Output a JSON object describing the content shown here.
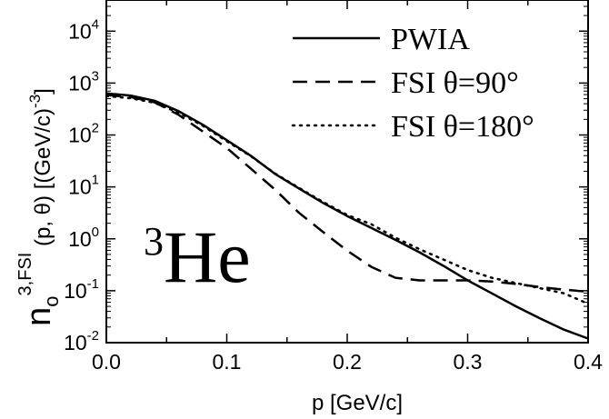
{
  "chart_data": {
    "type": "line",
    "xlabel": "p [GeV/c]",
    "ylabel": {
      "base": "n",
      "base_sub": "o",
      "superscript": "3,FSI",
      "rest": " (p, θ) [(GeV/c)",
      "exponent": "-3",
      "close": "]"
    },
    "xlim": [
      0.0,
      0.4
    ],
    "ylim_log10": [
      -2,
      4.6
    ],
    "y_scale": "log",
    "x_ticks": [
      {
        "value": 0.0,
        "label": "0.0"
      },
      {
        "value": 0.1,
        "label": "0.1"
      },
      {
        "value": 0.2,
        "label": "0.2"
      },
      {
        "value": 0.3,
        "label": "0.3"
      },
      {
        "value": 0.4,
        "label": "0.4"
      }
    ],
    "y_ticks": [
      {
        "exp": -2,
        "base": "10",
        "sup": "-2"
      },
      {
        "exp": -1,
        "base": "10",
        "sup": "-1"
      },
      {
        "exp": 0,
        "base": "10",
        "sup": "0"
      },
      {
        "exp": 1,
        "base": "10",
        "sup": "1"
      },
      {
        "exp": 2,
        "base": "10",
        "sup": "2"
      },
      {
        "exp": 3,
        "base": "10",
        "sup": "3"
      },
      {
        "exp": 4,
        "base": "10",
        "sup": "4"
      }
    ],
    "annotation": {
      "sup": "3",
      "text": "He"
    },
    "legend_position": "top-right",
    "grid": false,
    "series": [
      {
        "name": "PWIA",
        "style": "solid",
        "x": [
          0.0,
          0.02,
          0.04,
          0.06,
          0.08,
          0.1,
          0.12,
          0.14,
          0.16,
          0.18,
          0.2,
          0.22,
          0.24,
          0.26,
          0.28,
          0.3,
          0.32,
          0.34,
          0.36,
          0.38,
          0.4
        ],
        "y": [
          631,
          575,
          457,
          288,
          158,
          79.4,
          39.8,
          17.8,
          9.3,
          4.9,
          2.75,
          1.62,
          0.955,
          0.55,
          0.3,
          0.158,
          0.0891,
          0.0501,
          0.0295,
          0.0178,
          0.012
        ]
      },
      {
        "name": "FSI θ=90°",
        "style": "dashed",
        "x": [
          0.0,
          0.02,
          0.04,
          0.06,
          0.08,
          0.1,
          0.12,
          0.14,
          0.16,
          0.18,
          0.2,
          0.22,
          0.24,
          0.26,
          0.28,
          0.3,
          0.32,
          0.34,
          0.36,
          0.38,
          0.4
        ],
        "y": [
          589,
          537,
          427,
          245,
          117,
          56.2,
          22.4,
          8.91,
          3.16,
          1.35,
          0.59,
          0.288,
          0.178,
          0.158,
          0.158,
          0.158,
          0.151,
          0.135,
          0.118,
          0.105,
          0.0955
        ]
      },
      {
        "name": "FSI θ=180°",
        "style": "dotted",
        "x": [
          0.0,
          0.02,
          0.04,
          0.06,
          0.08,
          0.1,
          0.12,
          0.14,
          0.16,
          0.18,
          0.2,
          0.22,
          0.24,
          0.26,
          0.28,
          0.3,
          0.32,
          0.34,
          0.36,
          0.38,
          0.4
        ],
        "y": [
          562,
          513,
          417,
          269,
          151,
          75.9,
          38.9,
          18.2,
          9.55,
          5.13,
          2.88,
          1.91,
          1.05,
          0.631,
          0.398,
          0.25,
          0.178,
          0.141,
          0.112,
          0.0891,
          0.0562
        ]
      }
    ]
  },
  "colors": {
    "line": "#000000",
    "background": "#ffffff"
  }
}
